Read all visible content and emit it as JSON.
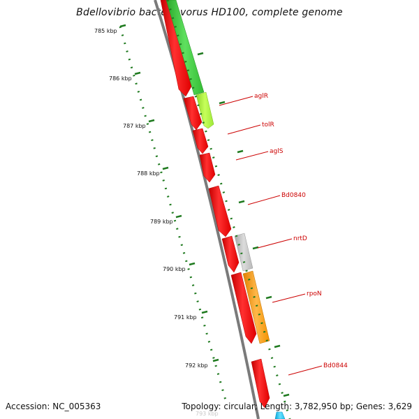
{
  "title": "Bdellovibrio bacteriovorus HD100, complete genome",
  "accession": "Accession: NC_005363",
  "stats": "Topology: circular; Length: 3,782,950 bp; Genes: 3,629",
  "scale_labels": [
    "785 kbp",
    "786 kbp",
    "787 kbp",
    "788 kbp",
    "789 kbp",
    "790 kbp",
    "791 kbp",
    "792 kbp",
    "793 kbp"
  ],
  "gene_labels": [
    "aglR",
    "tolR",
    "aglS",
    "Bd0840",
    "nrtD",
    "rpoN",
    "Bd0844"
  ],
  "colors": {
    "forward_red": "#ff0000",
    "backbone_gray": "#7a7a7a",
    "green": "#3fcf3f",
    "lime": "#a8f03c",
    "light_gray": "#c4c4c4",
    "orange": "#ff9a00",
    "cyan": "#22c8f0",
    "tick_green": "#1f7a1f",
    "label_red": "#cc0000"
  }
}
